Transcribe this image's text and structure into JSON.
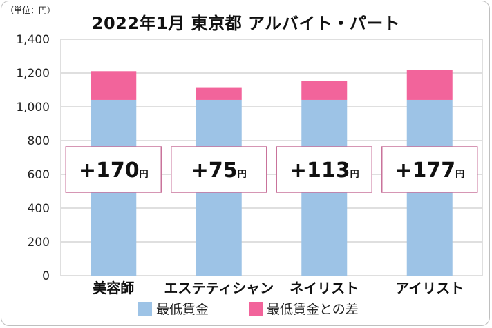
{
  "header": {
    "unit_label": "（単位：円）",
    "title": "2022年1月  東京都  アルバイト・パート"
  },
  "chart_data": {
    "type": "bar",
    "stacked": true,
    "categories": [
      "美容師",
      "エステティシャン",
      "ネイリスト",
      "アイリスト"
    ],
    "series": [
      {
        "name": "最低賃金",
        "values": [
          1041,
          1041,
          1041,
          1041
        ],
        "color": "#9dc3e6"
      },
      {
        "name": "最低賃金との差",
        "values": [
          170,
          75,
          113,
          177
        ],
        "color": "#f2649b"
      }
    ],
    "data_labels": [
      {
        "sign": "+",
        "value": "170",
        "suffix": "円"
      },
      {
        "sign": "+",
        "value": "75",
        "suffix": "円"
      },
      {
        "sign": "+",
        "value": "113",
        "suffix": "円"
      },
      {
        "sign": "+",
        "value": "177",
        "suffix": "円"
      }
    ],
    "ylim": [
      0,
      1400
    ],
    "yticks": [
      0,
      200,
      400,
      600,
      800,
      1000,
      1200,
      1400
    ],
    "ytick_labels": [
      "0",
      "200",
      "400",
      "600",
      "800",
      "1,000",
      "1,200",
      "1,400"
    ],
    "grid": true,
    "legend_position": "bottom",
    "label_box_border_color": "#c9739b"
  }
}
